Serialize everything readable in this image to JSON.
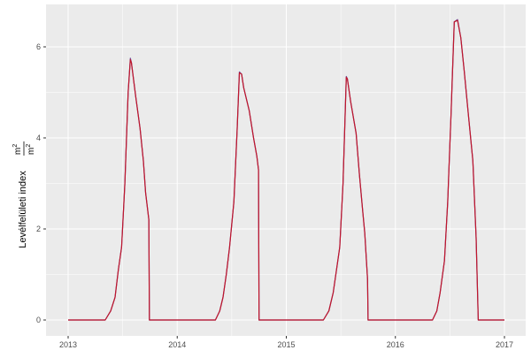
{
  "chart_data": {
    "type": "line",
    "title": "",
    "xlabel": "",
    "ylabel": "Levélfelületi index",
    "ylabel_unit_num": "m2",
    "ylabel_unit_den": "m2",
    "xlim": [
      2012.8,
      2017.2
    ],
    "ylim": [
      -0.33,
      6.9
    ],
    "grid": true,
    "x_ticks": [
      2013,
      2014,
      2015,
      2016,
      2017
    ],
    "x_tick_labels": [
      "2013",
      "2014",
      "2015",
      "2016",
      "2017"
    ],
    "y_ticks": [
      0,
      2,
      4,
      6
    ],
    "y_tick_labels": [
      "0",
      "2",
      "4",
      "6"
    ],
    "colors": {
      "panel": "#ebebeb",
      "grid": "#ffffff"
    },
    "series": [
      {
        "color": "#6a4c9c",
        "x": [
          2013.0,
          2013.34,
          2013.39,
          2013.43,
          2013.46,
          2013.49,
          2013.52,
          2013.55,
          2013.57,
          2013.58,
          2013.62,
          2013.66,
          2013.69,
          2013.71,
          2013.74,
          2013.745,
          2014.35,
          2014.39,
          2014.42,
          2014.45,
          2014.48,
          2014.52,
          2014.55,
          2014.57,
          2014.59,
          2014.61,
          2014.66,
          2014.7,
          2014.73,
          2014.745,
          2014.75,
          2015.34,
          2015.39,
          2015.43,
          2015.46,
          2015.49,
          2015.52,
          2015.55,
          2015.56,
          2015.59,
          2015.64,
          2015.67,
          2015.7,
          2015.72,
          2015.745,
          2015.75,
          2016.34,
          2016.38,
          2016.41,
          2016.45,
          2016.48,
          2016.51,
          2016.54,
          2016.57,
          2016.6,
          2016.63,
          2016.67,
          2016.71,
          2016.74,
          2016.76,
          2017.0
        ],
        "y": [
          0,
          0,
          0.2,
          0.5,
          1.1,
          1.6,
          3.0,
          5.0,
          5.75,
          5.65,
          4.9,
          4.2,
          3.5,
          2.8,
          2.2,
          0,
          0,
          0.2,
          0.5,
          1.0,
          1.6,
          2.6,
          4.2,
          5.45,
          5.4,
          5.1,
          4.6,
          4.0,
          3.6,
          3.3,
          0,
          0,
          0.2,
          0.6,
          1.1,
          1.6,
          3.0,
          5.35,
          5.3,
          4.8,
          4.1,
          3.2,
          2.4,
          1.9,
          0.9,
          0,
          0,
          0.2,
          0.6,
          1.3,
          2.6,
          4.5,
          6.55,
          6.6,
          6.2,
          5.5,
          4.5,
          3.5,
          1.8,
          0,
          0
        ]
      },
      {
        "color": "#c0162b",
        "x": [
          2013.0,
          2013.34,
          2013.39,
          2013.43,
          2013.46,
          2013.49,
          2013.52,
          2013.55,
          2013.57,
          2013.58,
          2013.62,
          2013.66,
          2013.69,
          2013.71,
          2013.74,
          2013.745,
          2014.35,
          2014.39,
          2014.42,
          2014.45,
          2014.48,
          2014.52,
          2014.55,
          2014.57,
          2014.59,
          2014.61,
          2014.66,
          2014.7,
          2014.73,
          2014.745,
          2014.75,
          2015.34,
          2015.39,
          2015.43,
          2015.46,
          2015.49,
          2015.52,
          2015.55,
          2015.56,
          2015.59,
          2015.64,
          2015.67,
          2015.7,
          2015.72,
          2015.745,
          2015.75,
          2016.34,
          2016.38,
          2016.41,
          2016.45,
          2016.48,
          2016.51,
          2016.54,
          2016.57,
          2016.6,
          2016.63,
          2016.67,
          2016.71,
          2016.74,
          2016.76,
          2017.0
        ],
        "y": [
          0,
          0,
          0.2,
          0.5,
          1.1,
          1.6,
          3.0,
          5.0,
          5.72,
          5.65,
          4.9,
          4.2,
          3.5,
          2.8,
          2.2,
          0,
          0,
          0.2,
          0.5,
          1.0,
          1.6,
          2.6,
          4.2,
          5.43,
          5.4,
          5.1,
          4.6,
          4.0,
          3.6,
          3.3,
          0,
          0,
          0.2,
          0.6,
          1.1,
          1.6,
          3.0,
          5.33,
          5.3,
          4.8,
          4.1,
          3.2,
          2.4,
          1.9,
          0.9,
          0,
          0,
          0.2,
          0.6,
          1.3,
          2.6,
          4.5,
          6.55,
          6.58,
          6.2,
          5.5,
          4.5,
          3.5,
          1.8,
          0,
          0
        ]
      }
    ]
  }
}
